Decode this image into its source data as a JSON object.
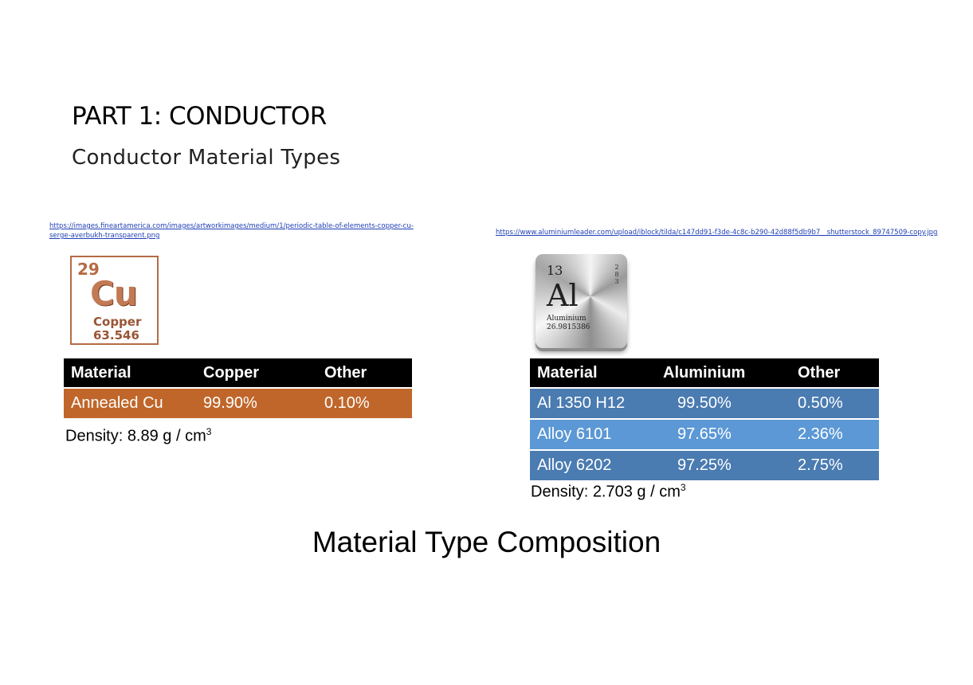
{
  "slide": {
    "title": "PART 1: CONDUCTOR",
    "subtitle": "Conductor Material Types",
    "bottom_title": "Material Type Composition"
  },
  "copper": {
    "source_link": "https://images.fineartamerica.com/images/artworkimages/medium/1/periodic-table-of-elements-copper-cu-serge-averbukh-transparent.png",
    "tile": {
      "number": "29",
      "symbol": "Cu",
      "name": "Copper",
      "mass": "63.546"
    },
    "table": {
      "headers": [
        "Material",
        "Copper",
        "Other"
      ],
      "rows": [
        [
          "Annealed Cu",
          "99.90%",
          "0.10%"
        ]
      ]
    },
    "density_label": "Density:",
    "density_value": "8.89 g / cm",
    "density_exp": "3",
    "row_color": "#c0662a"
  },
  "aluminium": {
    "source_link": "https://www.aluminiumleader.com/upload/iblock/tilda/c147dd91-f3de-4c8c-b290-42d88f5db9b7__shutterstock_89747509-copy.jpg",
    "tile": {
      "number": "13",
      "symbol": "Al",
      "name": "Aluminium",
      "mass": "26.9815386",
      "shells": [
        "2",
        "8",
        "3"
      ]
    },
    "table": {
      "headers": [
        "Material",
        "Aluminium",
        "Other"
      ],
      "rows": [
        [
          "Al 1350 H12",
          "99.50%",
          "0.50%"
        ],
        [
          "Alloy 6101",
          "97.65%",
          "2.36%"
        ],
        [
          "Alloy 6202",
          "97.25%",
          "2.75%"
        ]
      ]
    },
    "density_label": "Density:",
    "density_value": "2.703 g / cm",
    "density_exp": "3",
    "row_colors": [
      "#4a7bb1",
      "#5b98d5"
    ]
  }
}
